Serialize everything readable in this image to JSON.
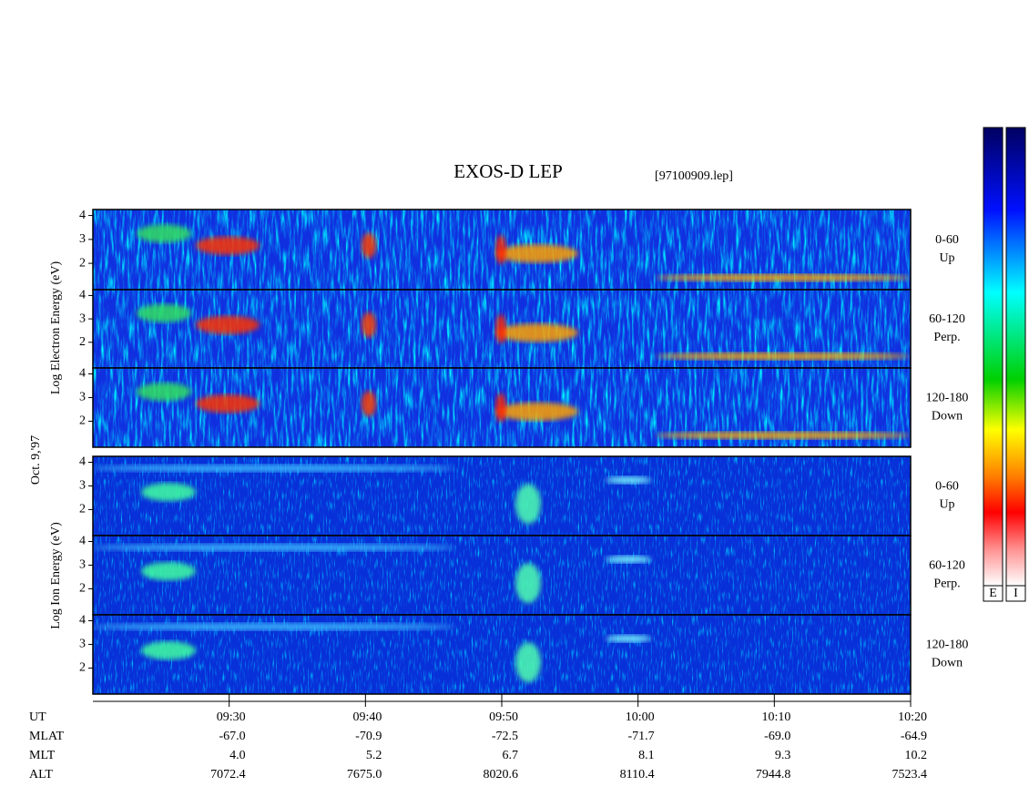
{
  "chart_data": {
    "type": "spectrogram",
    "title": "EXOS-D LEP",
    "subtitle": "[97100909.lep]",
    "date_label": "Oct. 9,'97",
    "groups": [
      {
        "label": "Log Electron Energy (eV)",
        "colorbar_label": "E"
      },
      {
        "label": "Log Ion Energy (eV)",
        "colorbar_label": "I"
      }
    ],
    "panels": [
      {
        "group": 0,
        "range": "0-60",
        "direction": "Up"
      },
      {
        "group": 0,
        "range": "60-120",
        "direction": "Perp."
      },
      {
        "group": 0,
        "range": "120-180",
        "direction": "Down"
      },
      {
        "group": 1,
        "range": "0-60",
        "direction": "Up"
      },
      {
        "group": 1,
        "range": "60-120",
        "direction": "Perp."
      },
      {
        "group": 1,
        "range": "120-180",
        "direction": "Down"
      }
    ],
    "ylim": [
      0.9,
      4.25
    ],
    "yticks": [
      2,
      3,
      4
    ],
    "xlabel": "UT",
    "xlim": [
      "09:20",
      "10:20"
    ],
    "xticks": [
      "09:30",
      "09:40",
      "09:50",
      "10:00",
      "10:10",
      "10:20"
    ],
    "ephemeris": [
      {
        "name": "MLAT",
        "values": [
          "-67.0",
          "-70.9",
          "-72.5",
          "-71.7",
          "-69.0",
          "-64.9"
        ]
      },
      {
        "name": "MLT",
        "values": [
          "4.0",
          "5.2",
          "6.7",
          "8.1",
          "9.3",
          "10.2"
        ]
      },
      {
        "name": "ALT",
        "values": [
          "7072.4",
          "7675.0",
          "8020.6",
          "8110.4",
          "7944.8",
          "7523.4"
        ]
      }
    ]
  }
}
